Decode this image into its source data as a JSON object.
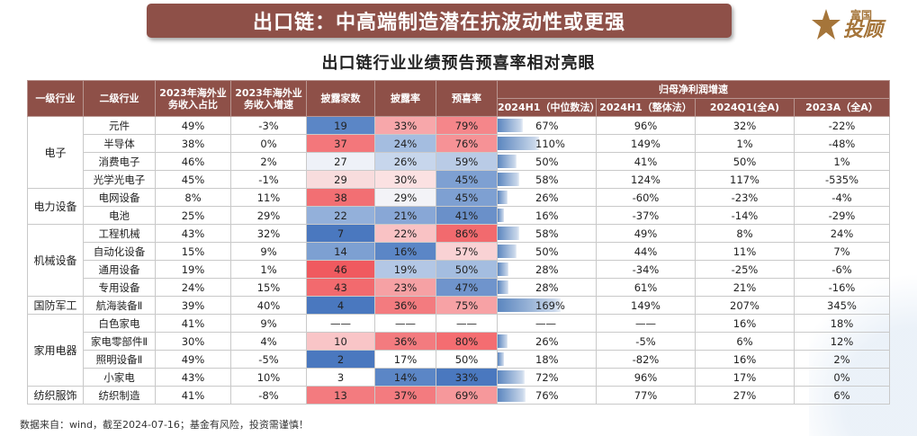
{
  "header": {
    "banner_title": "出口链：中高端制造潜在抗波动性或更强",
    "logo_small": "富国",
    "logo_big": "投顾",
    "subtitle": "出口链行业业绩预告预喜率相对亮眼"
  },
  "table": {
    "headers": {
      "level1": "一级行业",
      "level2": "二级行业",
      "overseas_share": "2023年海外业务收入占比",
      "overseas_growth": "2023年海外业务收入增速",
      "disclosed_count": "披露家数",
      "disclosure_rate": "披露率",
      "positive_rate": "预喜率",
      "profit_group": "归母净利润增速",
      "h1_median": "2024H1（中位数法）",
      "h1_overall": "2024H1（整体法）",
      "q1_2024": "2024Q1(全A)",
      "a_2023": "2023A（全A）"
    },
    "groups": [
      {
        "name": "电子",
        "rows": [
          {
            "name": "元件",
            "share": "49%",
            "growth": "-3%",
            "count": "19",
            "disc": "33%",
            "pos": "79%",
            "h1m": "67%",
            "h1m_value": 67,
            "h1o": "96%",
            "q1": "32%",
            "a23": "-22%",
            "c_count": "#5b86c6",
            "c_disc": "#f7a7aa",
            "c_pos": "#f5868a"
          },
          {
            "name": "半导体",
            "share": "38%",
            "growth": "0%",
            "count": "37",
            "disc": "24%",
            "pos": "76%",
            "h1m": "110%",
            "h1m_value": 110,
            "h1o": "149%",
            "q1": "1%",
            "a23": "-48%",
            "c_count": "#f3777b",
            "c_disc": "#a4bde0",
            "c_pos": "#f69296"
          },
          {
            "name": "消费电子",
            "share": "46%",
            "growth": "2%",
            "count": "27",
            "disc": "26%",
            "pos": "59%",
            "h1m": "50%",
            "h1m_value": 50,
            "h1o": "41%",
            "q1": "50%",
            "a23": "1%",
            "c_count": "#eef1f8",
            "c_disc": "#c7d6ec",
            "c_pos": "#b9cbe6"
          },
          {
            "name": "光学光电子",
            "share": "45%",
            "growth": "-1%",
            "count": "29",
            "disc": "30%",
            "pos": "45%",
            "h1m": "58%",
            "h1m_value": 58,
            "h1o": "124%",
            "q1": "117%",
            "a23": "-535%",
            "c_count": "#f8dcdd",
            "c_disc": "#fbe1e2",
            "c_pos": "#7ea0d2"
          }
        ]
      },
      {
        "name": "电力设备",
        "rows": [
          {
            "name": "电网设备",
            "share": "8%",
            "growth": "11%",
            "count": "38",
            "disc": "29%",
            "pos": "45%",
            "h1m": "26%",
            "h1m_value": 26,
            "h1o": "-60%",
            "q1": "-23%",
            "a23": "-4%",
            "c_count": "#f26f73",
            "c_disc": "#f3f3f7",
            "c_pos": "#7ea0d2"
          },
          {
            "name": "电池",
            "share": "25%",
            "growth": "29%",
            "count": "22",
            "disc": "21%",
            "pos": "41%",
            "h1m": "16%",
            "h1m_value": 16,
            "h1o": "-37%",
            "q1": "-14%",
            "a23": "-29%",
            "c_count": "#93b0da",
            "c_disc": "#88a7d6",
            "c_pos": "#6a90c9"
          }
        ]
      },
      {
        "name": "机械设备",
        "rows": [
          {
            "name": "工程机械",
            "share": "43%",
            "growth": "32%",
            "count": "7",
            "disc": "22%",
            "pos": "86%",
            "h1m": "58%",
            "h1m_value": 58,
            "h1o": "49%",
            "q1": "8%",
            "a23": "24%",
            "c_count": "#4a78bf",
            "c_disc": "#f9c2c4",
            "c_pos": "#f26a6e"
          },
          {
            "name": "自动化设备",
            "share": "15%",
            "growth": "9%",
            "count": "14",
            "disc": "16%",
            "pos": "57%",
            "h1m": "50%",
            "h1m_value": 50,
            "h1o": "44%",
            "q1": "11%",
            "a23": "7%",
            "c_count": "#7da0d2",
            "c_disc": "#5b86c6",
            "c_pos": "#f9d2d4"
          },
          {
            "name": "通用设备",
            "share": "19%",
            "growth": "1%",
            "count": "46",
            "disc": "19%",
            "pos": "50%",
            "h1m": "28%",
            "h1m_value": 28,
            "h1o": "-34%",
            "q1": "-25%",
            "a23": "-6%",
            "c_count": "#f05a5f",
            "c_disc": "#b3c7e5",
            "c_pos": "#a4bde0"
          },
          {
            "name": "专用设备",
            "share": "24%",
            "growth": "15%",
            "count": "43",
            "disc": "23%",
            "pos": "47%",
            "h1m": "28%",
            "h1m_value": 28,
            "h1o": "61%",
            "q1": "21%",
            "a23": "-16%",
            "c_count": "#f26a6e",
            "c_disc": "#f6a1a4",
            "c_pos": "#6f94cc"
          }
        ]
      },
      {
        "name": "国防军工",
        "rows": [
          {
            "name": "航海装备Ⅱ",
            "share": "39%",
            "growth": "40%",
            "count": "4",
            "disc": "36%",
            "pos": "75%",
            "h1m": "169%",
            "h1m_value": 169,
            "h1o": "149%",
            "q1": "207%",
            "a23": "345%",
            "c_count": "#4a78bf",
            "c_disc": "#f37b7f",
            "c_pos": "#f7a2a5"
          }
        ]
      },
      {
        "name": "家用电器",
        "rows": [
          {
            "name": "白色家电",
            "share": "41%",
            "growth": "9%",
            "count": "——",
            "disc": "——",
            "pos": "——",
            "h1m": "——",
            "h1m_value": 0,
            "h1o": "——",
            "q1": "16%",
            "a23": "18%",
            "c_count": "#ffffff",
            "c_disc": "#ffffff",
            "c_pos": "#ffffff"
          },
          {
            "name": "家电零部件Ⅱ",
            "share": "30%",
            "growth": "4%",
            "count": "10",
            "disc": "36%",
            "pos": "80%",
            "h1m": "26%",
            "h1m_value": 26,
            "h1o": "-5%",
            "q1": "6%",
            "a23": "12%",
            "c_count": "#f9c5c7",
            "c_disc": "#f37b7f",
            "c_pos": "#f46d71"
          },
          {
            "name": "照明设备Ⅱ",
            "share": "49%",
            "growth": "-5%",
            "count": "2",
            "disc": "17%",
            "pos": "50%",
            "h1m": "18%",
            "h1m_value": 18,
            "h1o": "-82%",
            "q1": "16%",
            "a23": "2%",
            "c_count": "#4a78bf",
            "c_disc": "#ffffff",
            "c_pos": "#ffffff"
          },
          {
            "name": "小家电",
            "share": "43%",
            "growth": "10%",
            "count": "3",
            "disc": "14%",
            "pos": "33%",
            "h1m": "72%",
            "h1m_value": 72,
            "h1o": "96%",
            "q1": "17%",
            "a23": "0%",
            "c_count": "#ffffff",
            "c_disc": "#5b86c6",
            "c_pos": "#4a78bf"
          }
        ]
      },
      {
        "name": "纺织服饰",
        "rows": [
          {
            "name": "纺织制造",
            "share": "41%",
            "growth": "-8%",
            "count": "13",
            "disc": "37%",
            "pos": "69%",
            "h1m": "76%",
            "h1m_value": 76,
            "h1o": "77%",
            "q1": "27%",
            "a23": "6%",
            "c_count": "#f37b7f",
            "c_disc": "#f37b7f",
            "c_pos": "#f6989b"
          }
        ]
      }
    ]
  },
  "footnote": "数据来自：wind，截至2024-07-16；基金有风险，投资需谨慎！"
}
